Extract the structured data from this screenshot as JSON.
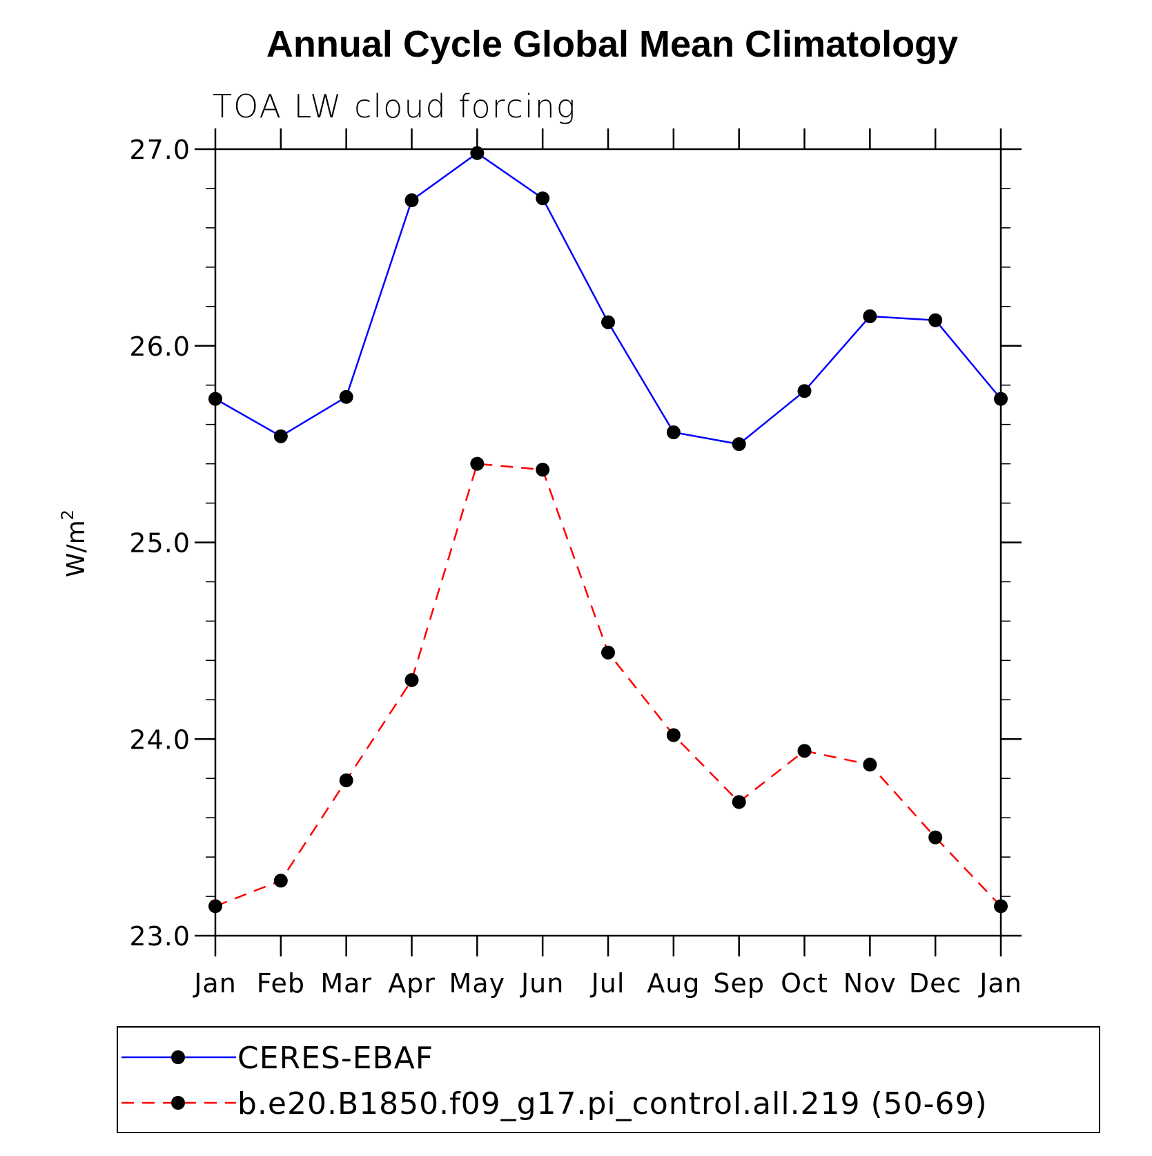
{
  "chart_data": {
    "type": "line",
    "title": "Annual Cycle Global Mean Climatology",
    "subtitle": "TOA LW cloud forcing",
    "ylabel_main": "W/m",
    "ylabel_sup": "2",
    "xlabel": "",
    "categories": [
      "Jan",
      "Feb",
      "Mar",
      "Apr",
      "May",
      "Jun",
      "Jul",
      "Aug",
      "Sep",
      "Oct",
      "Nov",
      "Dec",
      "Jan"
    ],
    "ylim": [
      23.0,
      27.0
    ],
    "yticks": [
      23.0,
      24.0,
      25.0,
      26.0,
      27.0
    ],
    "ytick_labels": [
      "23.0",
      "24.0",
      "25.0",
      "26.0",
      "27.0"
    ],
    "yminor_step": 0.2,
    "grid": false,
    "legend_position": "bottom",
    "series": [
      {
        "name": "CERES-EBAF",
        "color": "#0000ff",
        "line_style": "solid",
        "marker": "filled-circle",
        "values": [
          25.73,
          25.54,
          25.74,
          26.74,
          26.98,
          26.75,
          26.12,
          25.56,
          25.5,
          25.77,
          26.15,
          26.13,
          25.73
        ]
      },
      {
        "name": "b.e20.B1850.f09_g17.pi_control.all.219 (50-69)",
        "color": "#ff0000",
        "line_style": "dashed",
        "marker": "filled-circle",
        "values": [
          23.15,
          23.28,
          23.79,
          24.3,
          25.4,
          25.37,
          24.44,
          24.02,
          23.68,
          23.94,
          23.87,
          23.5,
          23.15
        ]
      }
    ]
  }
}
